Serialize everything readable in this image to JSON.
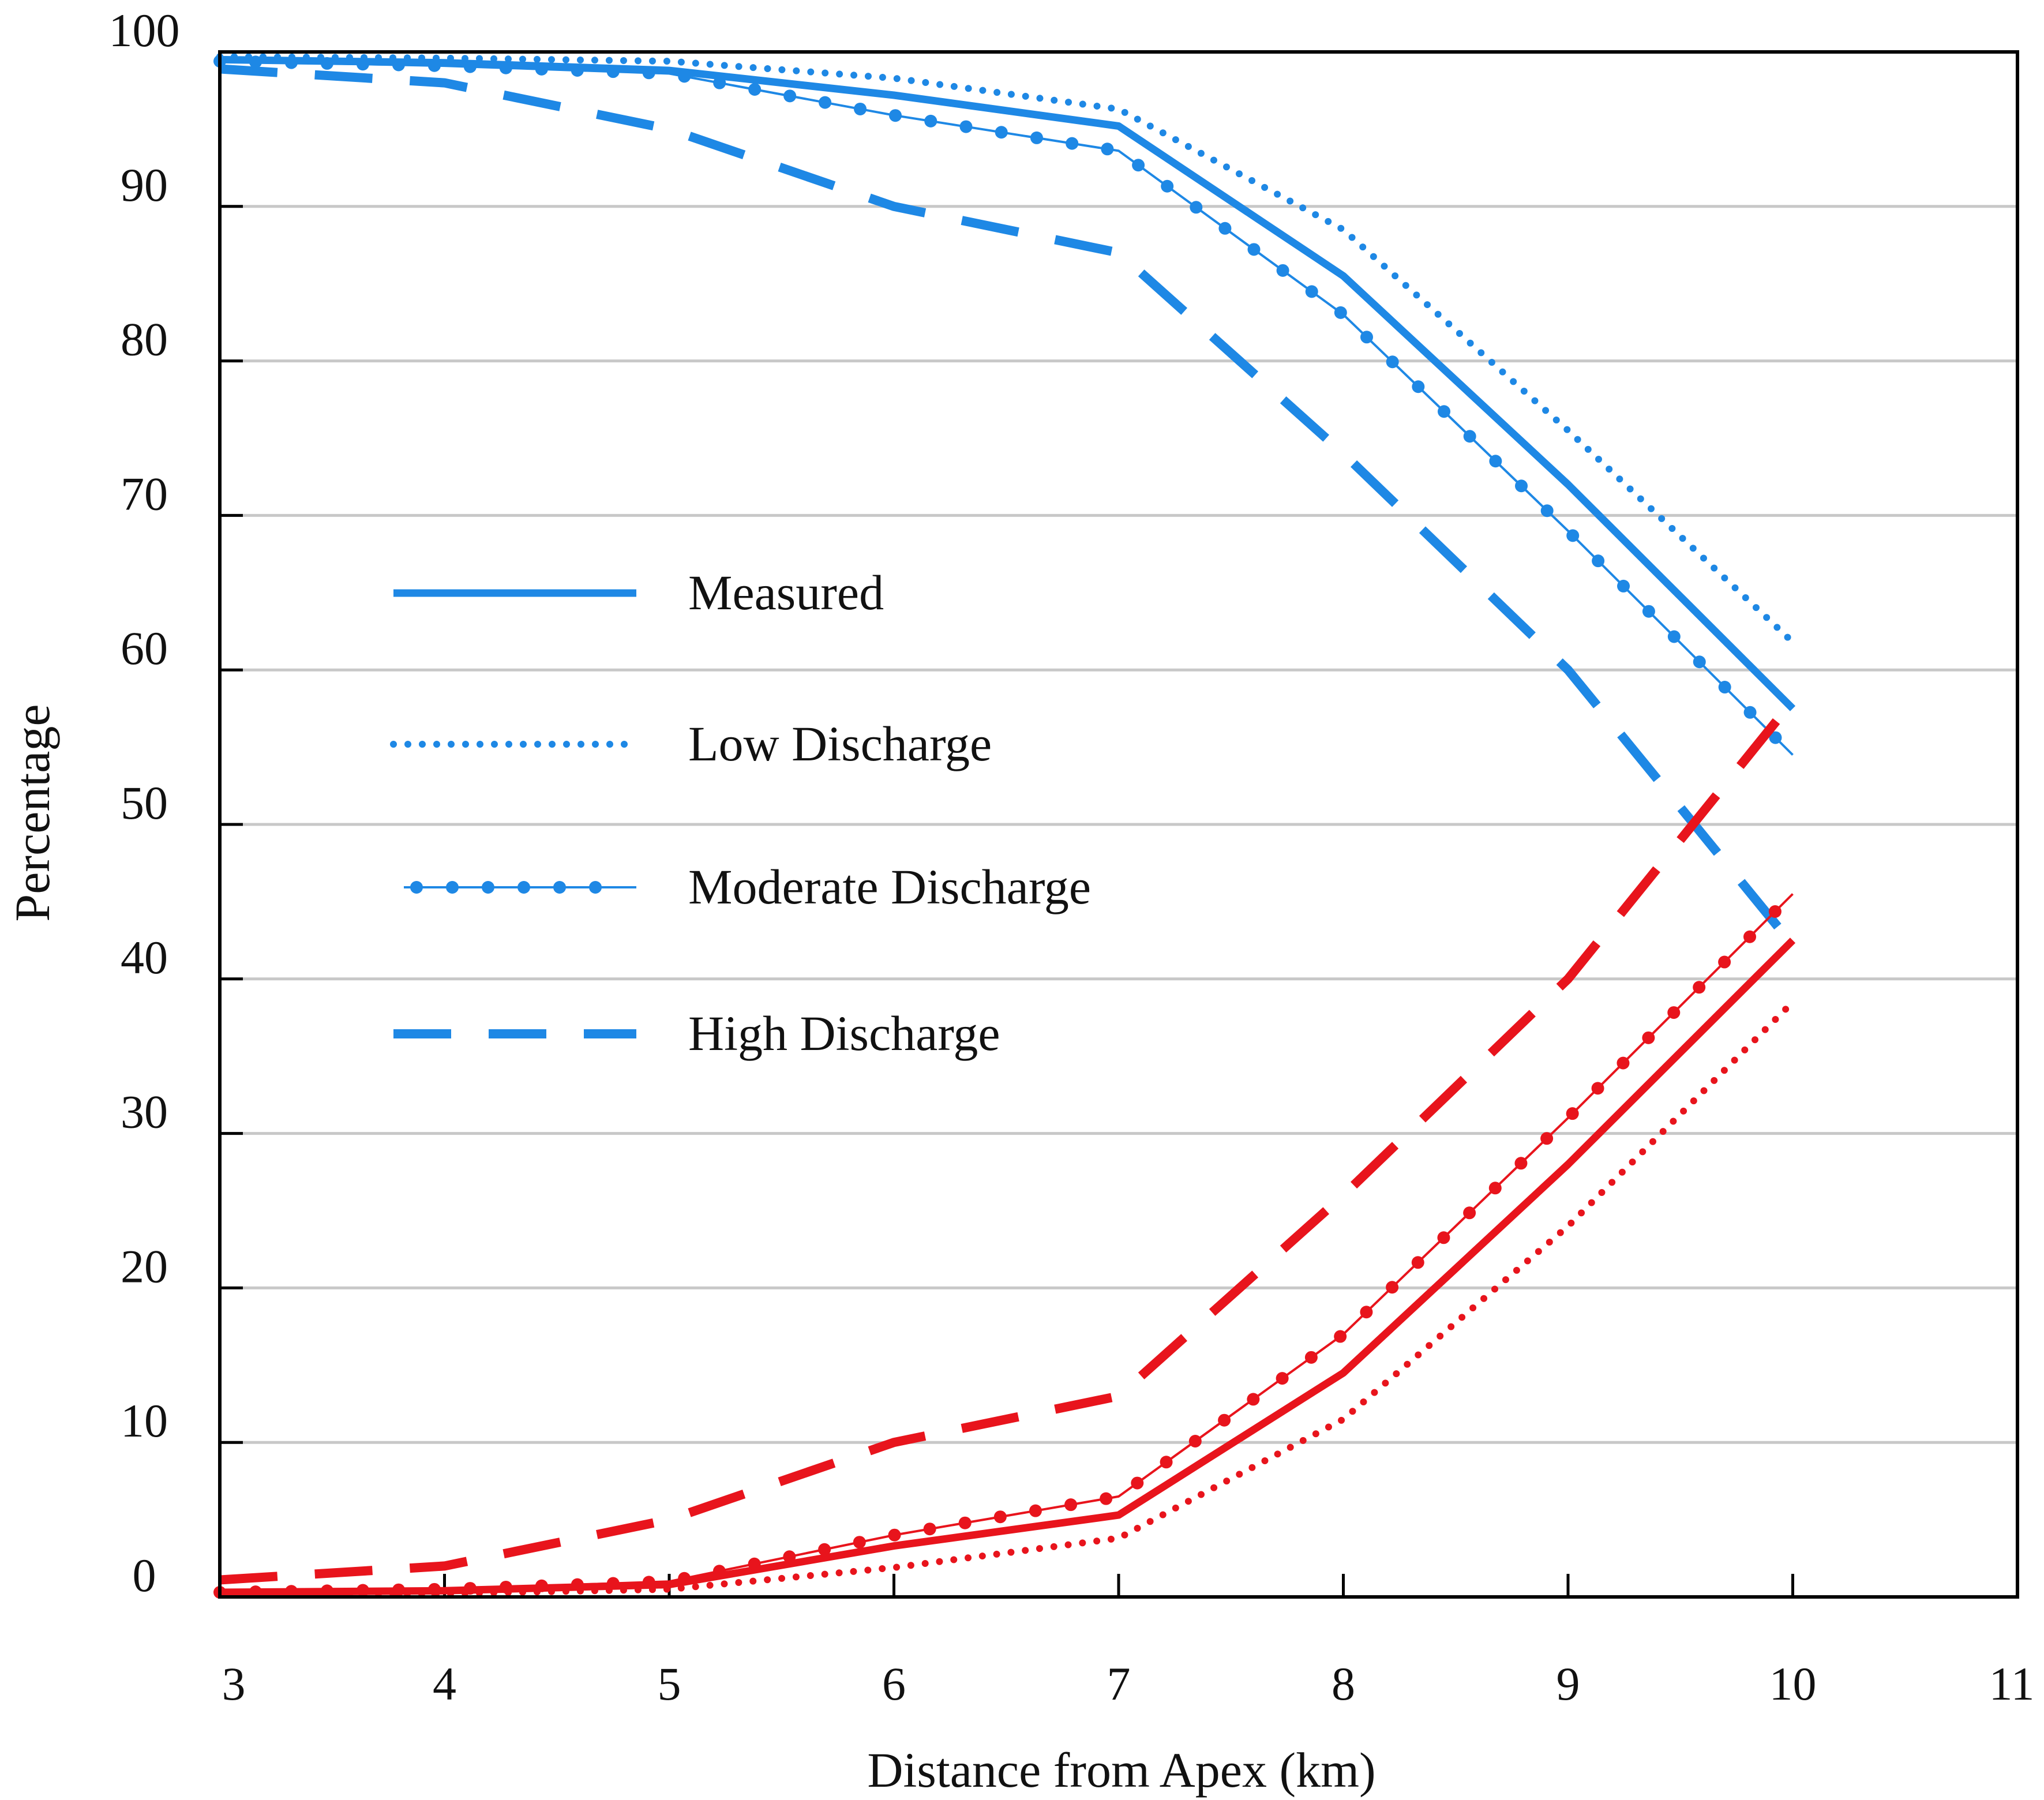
{
  "chart_data": {
    "type": "line",
    "title": "",
    "xlabel": "Distance from Apex (km)",
    "ylabel": "Percentage",
    "xlim": [
      3,
      11
    ],
    "ylim": [
      0,
      100
    ],
    "x_ticks": [
      3,
      4,
      5,
      6,
      7,
      8,
      9,
      10,
      11
    ],
    "y_ticks": [
      0,
      10,
      20,
      30,
      40,
      50,
      60,
      70,
      80,
      90,
      100
    ],
    "grid": "horizontal",
    "legend_position": "center-left",
    "colors": {
      "upper": "#1e88e5",
      "lower": "#e8141c",
      "grid": "#c8c8c8",
      "axis": "#000000"
    },
    "series": [
      {
        "name": "Measured",
        "group": "upper",
        "style": "solid",
        "x": [
          3,
          4,
          5,
          6,
          7,
          8,
          9,
          10
        ],
        "y": [
          99.5,
          99.3,
          98.8,
          97.2,
          95.2,
          85.5,
          72.0,
          57.5
        ]
      },
      {
        "name": "Low Discharge",
        "group": "upper",
        "style": "dotted",
        "x": [
          3,
          4,
          5,
          6,
          7,
          8,
          9,
          10
        ],
        "y": [
          99.7,
          99.6,
          99.4,
          98.3,
          96.3,
          88.5,
          75.5,
          61.8
        ]
      },
      {
        "name": "Moderate Discharge",
        "group": "upper",
        "style": "dot-marker",
        "x": [
          3,
          4,
          5,
          6,
          7,
          8,
          9,
          10
        ],
        "y": [
          99.4,
          99.1,
          98.6,
          95.9,
          93.6,
          83.0,
          69.0,
          54.5
        ]
      },
      {
        "name": "High Discharge",
        "group": "upper",
        "style": "dashed",
        "x": [
          3,
          4,
          5,
          6,
          7,
          8,
          9,
          10
        ],
        "y": [
          98.9,
          98.0,
          95.0,
          90.0,
          87.0,
          74.0,
          60.0,
          42.2
        ]
      },
      {
        "name": "Measured",
        "group": "lower",
        "style": "solid",
        "x": [
          3,
          4,
          5,
          6,
          7,
          8,
          9,
          10
        ],
        "y": [
          0.3,
          0.4,
          0.8,
          3.3,
          5.3,
          14.5,
          28.0,
          42.5
        ]
      },
      {
        "name": "Low Discharge",
        "group": "lower",
        "style": "dotted",
        "x": [
          3,
          4,
          5,
          6,
          7,
          8,
          9,
          10
        ],
        "y": [
          0.2,
          0.2,
          0.5,
          1.9,
          3.8,
          11.5,
          24.0,
          38.5
        ]
      },
      {
        "name": "Moderate Discharge",
        "group": "lower",
        "style": "dot-marker",
        "x": [
          3,
          4,
          5,
          6,
          7,
          8,
          9,
          10
        ],
        "y": [
          0.3,
          0.5,
          1.0,
          4.0,
          6.5,
          17.0,
          31.0,
          45.5
        ]
      },
      {
        "name": "High Discharge",
        "group": "lower",
        "style": "dashed",
        "x": [
          3,
          4,
          5,
          6,
          7,
          8,
          9,
          10
        ],
        "y": [
          1.1,
          2.0,
          5.0,
          10.0,
          13.0,
          26.0,
          40.0,
          58.0
        ]
      }
    ],
    "legend": [
      {
        "label": "Measured",
        "style": "solid"
      },
      {
        "label": "Low Discharge",
        "style": "dotted"
      },
      {
        "label": "Moderate Discharge",
        "style": "dot-marker"
      },
      {
        "label": "High Discharge",
        "style": "dashed"
      }
    ]
  }
}
